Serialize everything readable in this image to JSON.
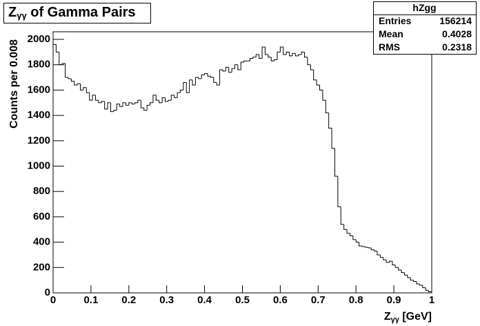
{
  "chart_data": {
    "type": "histogram",
    "title": [
      "Z",
      "γγ",
      " of Gamma Pairs"
    ],
    "x_label": [
      "Z",
      "γγ",
      " [GeV]"
    ],
    "y_label": "Counts per 0.008",
    "stats": {
      "name": "hZgg",
      "rows": [
        [
          "Entries",
          156214
        ],
        [
          "Mean",
          0.4028
        ],
        [
          "RMS",
          0.2318
        ]
      ]
    },
    "color": "#000000",
    "xlim": [
      0,
      1
    ],
    "ylim": [
      0,
      2060
    ],
    "xticks": [
      0,
      0.1,
      0.2,
      0.3,
      0.4,
      0.5,
      0.6,
      0.7,
      0.8,
      0.9,
      1
    ],
    "yticks": [
      0,
      200,
      400,
      600,
      800,
      1000,
      1200,
      1400,
      1600,
      1800,
      2000
    ],
    "bins": [
      0,
      0.008,
      0.016,
      0.024,
      0.032,
      0.04,
      0.048,
      0.056,
      0.064,
      0.072,
      0.08,
      0.088,
      0.096,
      0.104,
      0.112,
      0.12,
      0.128,
      0.136,
      0.144,
      0.152,
      0.16,
      0.168,
      0.176,
      0.184,
      0.192,
      0.2,
      0.208,
      0.216,
      0.224,
      0.232,
      0.24,
      0.248,
      0.256,
      0.264,
      0.272,
      0.28,
      0.288,
      0.296,
      0.304,
      0.312,
      0.32,
      0.328,
      0.336,
      0.344,
      0.352,
      0.36,
      0.368,
      0.376,
      0.384,
      0.392,
      0.4,
      0.408,
      0.416,
      0.424,
      0.432,
      0.44,
      0.448,
      0.456,
      0.464,
      0.472,
      0.48,
      0.488,
      0.496,
      0.504,
      0.512,
      0.52,
      0.528,
      0.536,
      0.544,
      0.552,
      0.56,
      0.568,
      0.576,
      0.584,
      0.592,
      0.6,
      0.608,
      0.616,
      0.624,
      0.632,
      0.64,
      0.648,
      0.656,
      0.664,
      0.672,
      0.68,
      0.688,
      0.696,
      0.704,
      0.712,
      0.72,
      0.728,
      0.736,
      0.744,
      0.752,
      0.76,
      0.768,
      0.776,
      0.784,
      0.792,
      0.8,
      0.808,
      0.816,
      0.824,
      0.832,
      0.84,
      0.848,
      0.856,
      0.864,
      0.872,
      0.88,
      0.888,
      0.896,
      0.904,
      0.912,
      0.92,
      0.928,
      0.936,
      0.944,
      0.952,
      0.96,
      0.968,
      0.976,
      0.984,
      0.992,
      1
    ],
    "values": [
      1960,
      1900,
      1800,
      1810,
      1700,
      1690,
      1670,
      1640,
      1650,
      1600,
      1620,
      1580,
      1520,
      1560,
      1520,
      1500,
      1510,
      1450,
      1500,
      1430,
      1440,
      1490,
      1470,
      1500,
      1480,
      1500,
      1490,
      1500,
      1520,
      1460,
      1440,
      1480,
      1500,
      1560,
      1520,
      1500,
      1540,
      1510,
      1520,
      1560,
      1540,
      1580,
      1600,
      1660,
      1580,
      1680,
      1640,
      1700,
      1690,
      1720,
      1730,
      1710,
      1700,
      1660,
      1640,
      1760,
      1750,
      1780,
      1740,
      1770,
      1800,
      1760,
      1820,
      1830,
      1830,
      1850,
      1860,
      1880,
      1850,
      1940,
      1880,
      1860,
      1830,
      1840,
      1900,
      1940,
      1880,
      1900,
      1870,
      1890,
      1870,
      1880,
      1900,
      1860,
      1800,
      1760,
      1680,
      1640,
      1600,
      1520,
      1420,
      1300,
      1140,
      920,
      680,
      540,
      500,
      470,
      450,
      420,
      400,
      370,
      365,
      360,
      355,
      340,
      330,
      300,
      280,
      260,
      240,
      250,
      220,
      200,
      180,
      160,
      140,
      120,
      100,
      90,
      70,
      60,
      40,
      20,
      8
    ]
  }
}
